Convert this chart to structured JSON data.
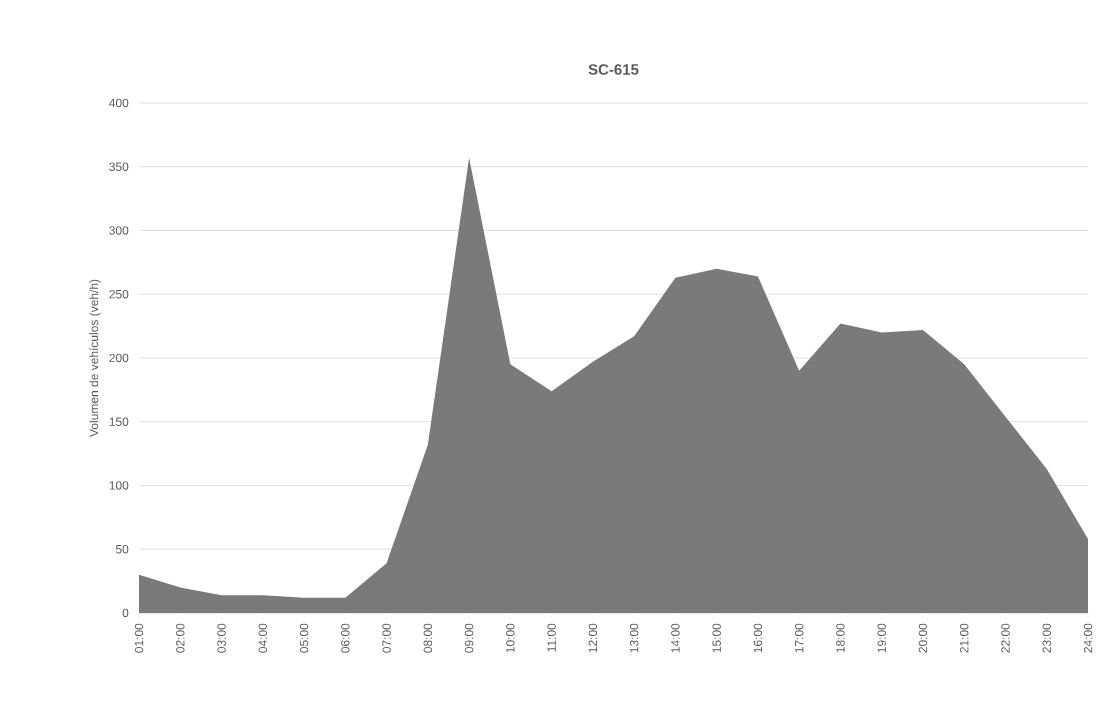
{
  "chart_data": {
    "type": "area",
    "title": "SC-615",
    "ylabel": "Volumen de vehículos (veh/h)",
    "categories": [
      "01:00",
      "02:00",
      "03:00",
      "04:00",
      "05:00",
      "06:00",
      "07:00",
      "08:00",
      "09:00",
      "10:00",
      "11:00",
      "12:00",
      "13:00",
      "14:00",
      "15:00",
      "16:00",
      "17:00",
      "18:00",
      "19:00",
      "20:00",
      "21:00",
      "22:00",
      "23:00",
      "24:00"
    ],
    "values": [
      30,
      20,
      14,
      14,
      12,
      12,
      39,
      132,
      357,
      195,
      174,
      197,
      217,
      263,
      270,
      264,
      190,
      227,
      220,
      222,
      195,
      154,
      113,
      58
    ],
    "color": "#7a7a7a",
    "ylim": [
      0,
      400
    ],
    "yticks": [
      0,
      50,
      100,
      150,
      200,
      250,
      300,
      350,
      400
    ],
    "grid": "y"
  }
}
